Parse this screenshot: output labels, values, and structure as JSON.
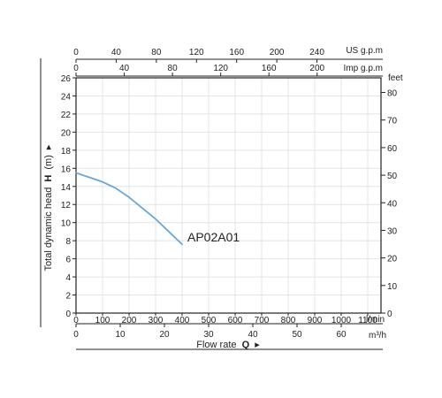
{
  "chart_data": {
    "type": "line",
    "title": "",
    "plot": {
      "xlim": [
        0,
        1150
      ],
      "ylim": [
        0,
        26
      ],
      "x_unit_label": "l/min",
      "y_ticks": [
        0,
        2,
        4,
        6,
        8,
        10,
        12,
        14,
        16,
        18,
        20,
        22,
        24,
        26
      ],
      "x_ticks": [
        0,
        100,
        200,
        300,
        400,
        500,
        600,
        700,
        800,
        900,
        1000,
        1100
      ],
      "grid": true
    },
    "ylabel": {
      "text": "Total dynamic head",
      "bold": "H",
      "unit": "(m)",
      "arrow": "▸"
    },
    "xlabel": {
      "text": "Flow rate",
      "bold": "Q",
      "arrow": "▸"
    },
    "top_axis_us": {
      "label": "US g.p.m",
      "ticks": [
        0,
        40,
        80,
        120,
        160,
        200,
        240
      ],
      "factor": 3.78541
    },
    "top_axis_imp": {
      "label": "Imp g.p.m",
      "ticks": [
        0,
        40,
        80,
        120,
        160,
        200
      ],
      "factor": 4.54609
    },
    "bottom_axis_m3h": {
      "label": "m³/h",
      "ticks": [
        0,
        10,
        20,
        30,
        40,
        50,
        60
      ],
      "factor": 16.6667
    },
    "right_axis_feet": {
      "label": "feet",
      "ticks": [
        0,
        10,
        20,
        30,
        40,
        50,
        60,
        70,
        80
      ],
      "factor": 0.3048
    },
    "series": [
      {
        "name": "AP02A01",
        "color": "#6aa7d6",
        "x": [
          0,
          50,
          100,
          150,
          200,
          250,
          300,
          350,
          400
        ],
        "y": [
          15.5,
          15.0,
          14.5,
          13.8,
          12.8,
          11.6,
          10.4,
          9.0,
          7.6
        ]
      }
    ]
  }
}
